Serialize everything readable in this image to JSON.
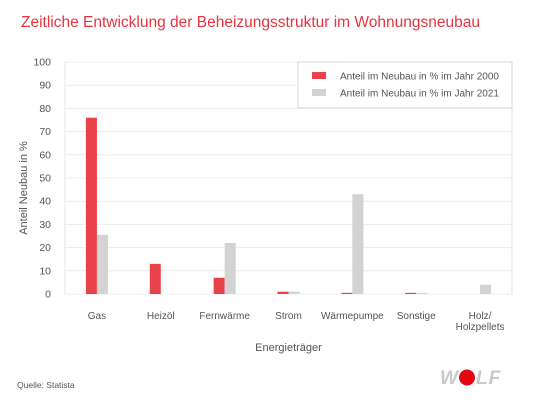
{
  "page": {
    "title": "Zeitliche Entwicklung der Beheizungsstruktur im Wohnungsneubau",
    "source": "Quelle: Statista",
    "logo_text": "WOLF"
  },
  "colors": {
    "title": "#e8343e",
    "series_2000": "#e8414a",
    "series_2021": "#d3d3d3",
    "axis_text": "#555555",
    "logo_red": "#e30613",
    "logo_grey": "#c9c9c9"
  },
  "chart_data": {
    "type": "bar",
    "xlabel": "Energieträger",
    "ylabel": "Anteil Neubau in %",
    "ylim": [
      0,
      100
    ],
    "yticks": [
      0,
      10,
      20,
      30,
      40,
      50,
      60,
      70,
      80,
      90,
      100
    ],
    "grid": true,
    "legend_position": "top-right",
    "categories": [
      "Gas",
      "Heizöl",
      "Fernwärme",
      "Strom",
      "Wärmepumpe",
      "Sonstige",
      "Holz/\nHolzpellets"
    ],
    "series": [
      {
        "name": "Anteil im Neubau in % im Jahr 2000",
        "color": "#e8414a",
        "values": [
          76,
          13,
          7,
          1,
          0.5,
          0.5,
          0
        ]
      },
      {
        "name": "Anteil im Neubau in % im Jahr 2021",
        "color": "#d3d3d3",
        "values": [
          25.5,
          0,
          22,
          1,
          43,
          0.5,
          4
        ]
      }
    ]
  }
}
